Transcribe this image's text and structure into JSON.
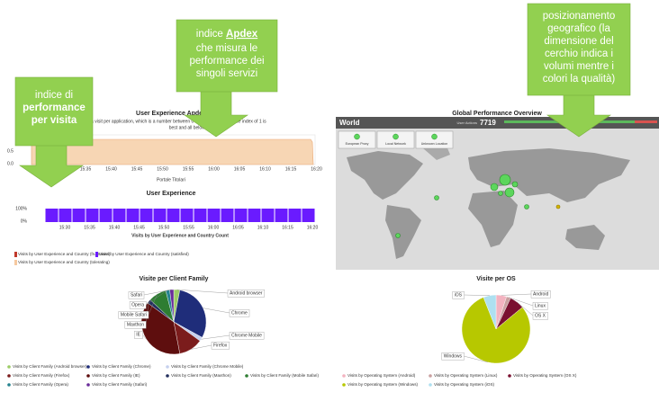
{
  "callouts": {
    "visit": {
      "line1": "indice di",
      "bold": "performance per visita"
    },
    "apdex": {
      "pre": "indice",
      "bold": "Apdex",
      "rest": "che misura le performance dei singoli servizi"
    },
    "geo": {
      "text": "posizionamento geografico (la dimensione del cerchio indica i volumi mentre i colori la qualità)"
    }
  },
  "apdex_panel": {
    "title": "User Experience Apdex",
    "description_1": "nce for a visit per application, which is a number between 0 to 1. A user experience index of 1 is",
    "description_2": "best and all below 0.5 is bad.",
    "yticks": [
      "0.5",
      "0.0"
    ],
    "xticks": [
      "15:25",
      "15:30",
      "15:35",
      "15:40",
      "15:45",
      "15:50",
      "15:55",
      "16:00",
      "16:05",
      "16:10",
      "16:15",
      "16:20"
    ],
    "subtitle": "Portale Titolari"
  },
  "ux_panel": {
    "title": "User Experience",
    "yticks": [
      "100%",
      "0%"
    ],
    "xticks": [
      "15:30",
      "15:35",
      "15:40",
      "15:45",
      "15:50",
      "15:55",
      "16:00",
      "16:05",
      "16:10",
      "16:15",
      "16:20"
    ],
    "xlabel": "Visits by User Experience and Country  Count",
    "bars": [
      100,
      100,
      100,
      100,
      100,
      100,
      100,
      100,
      100,
      100,
      100,
      100,
      100,
      100,
      100,
      100,
      100,
      100,
      100,
      100
    ],
    "legend": [
      {
        "name": "Visits by User Experience and Country (frustrated)",
        "color": "#c0392b"
      },
      {
        "name": "Visits by User Experience and Country (satisfied)",
        "color": "#6a1bff"
      },
      {
        "name": "Visits by User Experience and Country (tolerating)",
        "color": "#f6c9a0"
      }
    ]
  },
  "geo_panel": {
    "title": "Global Performance Overview",
    "region": "World",
    "counter_label": "User Actions",
    "counter": "7719",
    "buttons": [
      "European Proxy",
      "Local Network",
      "Unknown Location"
    ]
  },
  "client_family": {
    "title": "Visite per Client Family",
    "slices": [
      {
        "name": "Android browser",
        "value": 3,
        "color": "#9ccc65"
      },
      {
        "name": "Chrome",
        "value": 30,
        "color": "#1f2d7a"
      },
      {
        "name": "Chrome Mobile",
        "value": 2,
        "color": "#c5d0ee"
      },
      {
        "name": "Firefox",
        "value": 12,
        "color": "#7b1c1c"
      },
      {
        "name": "IE",
        "value": 38,
        "color": "#5e0e0e"
      },
      {
        "name": "Maxthon",
        "value": 2,
        "color": "#24305e"
      },
      {
        "name": "Mobile Safari",
        "value": 9,
        "color": "#2e7d32"
      },
      {
        "name": "Opera",
        "value": 2,
        "color": "#26838f"
      },
      {
        "name": "Safari",
        "value": 2,
        "color": "#6a2c9a"
      }
    ],
    "legend": [
      "Visits by Client Family (Android browser)",
      "Visits by Client Family (Chrome)",
      "Visits by Client Family (Chrome Mobile)",
      "Visits by Client Family (Firefox)",
      "Visits by Client Family (IE)",
      "Visits by Client Family (Maxthon)",
      "Visits by Client Family (Mobile Safari)",
      "Visits by Client Family (Opera)",
      "Visits by Client Family (Safari)"
    ]
  },
  "os": {
    "title": "Visite per OS",
    "slices": [
      {
        "name": "Android",
        "value": 5,
        "color": "#f3b3c0"
      },
      {
        "name": "Linux",
        "value": 2,
        "color": "#c9a0a0"
      },
      {
        "name": "OS X",
        "value": 7,
        "color": "#7a1030"
      },
      {
        "name": "Windows",
        "value": 80,
        "color": "#b7c800"
      },
      {
        "name": "iOS",
        "value": 6,
        "color": "#aee0f0"
      }
    ],
    "legend": [
      "Visits by Operating System (Android)",
      "Visits by Operating System (Linux)",
      "Visits by Operating System (OS X)",
      "Visits by Operating System (Windows)",
      "Visits by Operating System (iOS)"
    ]
  }
}
